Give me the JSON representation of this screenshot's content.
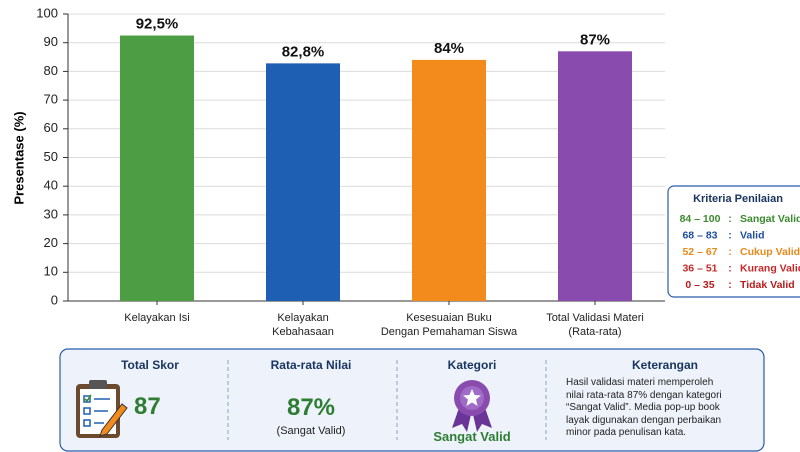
{
  "chart_data": {
    "type": "bar",
    "y_label": "Presentase (%)",
    "categories": [
      "Kelayakan Isi",
      "Kelayakan\nKebahasaan",
      "Kesesuaian Buku\nDengan Pemahaman Siswa",
      "Total Validasi Materi\n(Rata-rata)"
    ],
    "values": [
      92.5,
      82.8,
      84,
      87
    ],
    "value_labels": [
      "92,5%",
      "82,8%",
      "84%",
      "87%"
    ],
    "colors": [
      "#4c9d43",
      "#1e5fb4",
      "#f28b1b",
      "#8a4baf"
    ],
    "ylim": [
      0,
      100
    ],
    "yticks": [
      0,
      10,
      20,
      30,
      40,
      50,
      60,
      70,
      80,
      90,
      100
    ],
    "grid": true
  },
  "criteria": {
    "title": "Kriteria Penilaian",
    "separator": ":",
    "items": [
      {
        "range": "84 – 100",
        "label": "Sangat Valid",
        "color": "#3c8a2e"
      },
      {
        "range": "68 –  83",
        "label": "Valid",
        "color": "#1e4fa0"
      },
      {
        "range": "52 –  67",
        "label": "Cukup Valid",
        "color": "#e88a1a"
      },
      {
        "range": "36 –  51",
        "label": "Kurang Valid",
        "color": "#c62828"
      },
      {
        "range": "0 – 35",
        "label": "Tidak Valid",
        "color": "#b71c1c"
      }
    ]
  },
  "summary": {
    "total_score": {
      "title": "Total Skor",
      "value": "87"
    },
    "average": {
      "title": "Rata-rata Nilai",
      "value": "87%",
      "note": "(Sangat Valid)"
    },
    "category": {
      "title": "Kategori",
      "value": "Sangat Valid"
    },
    "description": {
      "title": "Keterangan",
      "text": "Hasil validasi materi memperoleh\nnilai rata-rata 87% dengan kategori\n“Sangat Valid”. Media pop-up book\nlayak digunakan dengan perbaikan\nminor pada penulisan kata."
    }
  }
}
